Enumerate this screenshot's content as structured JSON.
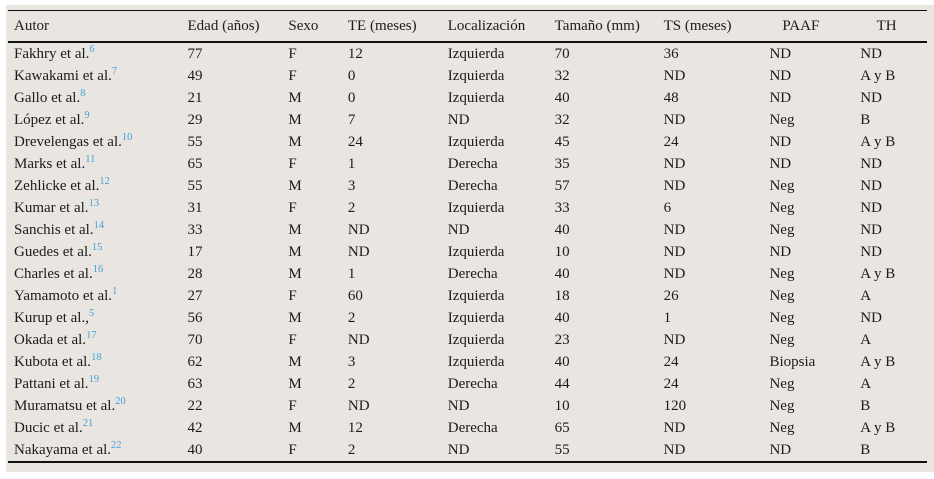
{
  "colors": {
    "table_background": "#e9e6e1",
    "rule_color": "#111111",
    "text_color": "#1c1c1c",
    "reference_blue": "#45a1d8"
  },
  "table": {
    "columns": [
      {
        "key": "autor",
        "label": "Autor"
      },
      {
        "key": "edad",
        "label": "Edad (años)"
      },
      {
        "key": "sexo",
        "label": "Sexo"
      },
      {
        "key": "te",
        "label": "TE (meses)"
      },
      {
        "key": "localizacion",
        "label": "Localización"
      },
      {
        "key": "tamano",
        "label": "Tamaño (mm)"
      },
      {
        "key": "ts",
        "label": "TS (meses)"
      },
      {
        "key": "paaf",
        "label": "PAAF"
      },
      {
        "key": "th",
        "label": "TH"
      }
    ],
    "rows": [
      {
        "author": "Fakhry et al.",
        "ref": "6",
        "cells": [
          "77",
          "F",
          "12",
          "Izquierda",
          "70",
          "36",
          "ND",
          "ND"
        ]
      },
      {
        "author": "Kawakami et al.",
        "ref": "7",
        "cells": [
          "49",
          "F",
          "0",
          "Izquierda",
          "32",
          "ND",
          "ND",
          "A y B"
        ]
      },
      {
        "author": "Gallo et al.",
        "ref": "8",
        "cells": [
          "21",
          "M",
          "0",
          "Izquierda",
          "40",
          "48",
          "ND",
          "ND"
        ]
      },
      {
        "author": "López et al.",
        "ref": "9",
        "cells": [
          "29",
          "M",
          "7",
          "ND",
          "32",
          "ND",
          "Neg",
          "B"
        ]
      },
      {
        "author": "Drevelengas et al.",
        "ref": "10",
        "cells": [
          "55",
          "M",
          "24",
          "Izquierda",
          "45",
          "24",
          "ND",
          "A y B"
        ]
      },
      {
        "author": "Marks et al.",
        "ref": "11",
        "cells": [
          "65",
          "F",
          "1",
          "Derecha",
          "35",
          "ND",
          "ND",
          "ND"
        ]
      },
      {
        "author": "Zehlicke et al.",
        "ref": "12",
        "cells": [
          "55",
          "M",
          "3",
          "Derecha",
          "57",
          "ND",
          "Neg",
          "ND"
        ]
      },
      {
        "author": "Kumar et al.",
        "ref": "13",
        "cells": [
          "31",
          "F",
          "2",
          "Izquierda",
          "33",
          "6",
          "Neg",
          "ND"
        ]
      },
      {
        "author": "Sanchis et al.",
        "ref": "14",
        "cells": [
          "33",
          "M",
          "ND",
          "ND",
          "40",
          "ND",
          "Neg",
          "ND"
        ]
      },
      {
        "author": "Guedes et al.",
        "ref": "15",
        "cells": [
          "17",
          "M",
          "ND",
          "Izquierda",
          "10",
          "ND",
          "ND",
          "ND"
        ]
      },
      {
        "author": "Charles et al.",
        "ref": "16",
        "cells": [
          "28",
          "M",
          "1",
          "Derecha",
          "40",
          "ND",
          "Neg",
          "A y B"
        ]
      },
      {
        "author": "Yamamoto et al.",
        "ref": "1",
        "cells": [
          "27",
          "F",
          "60",
          "Izquierda",
          "18",
          "26",
          "Neg",
          "A"
        ]
      },
      {
        "author": "Kurup et al.,",
        "ref": "5",
        "cells": [
          "56",
          "M",
          "2",
          "Izquierda",
          "40",
          "1",
          "Neg",
          "ND"
        ]
      },
      {
        "author": "Okada et al.",
        "ref": "17",
        "cells": [
          "70",
          "F",
          "ND",
          "Izquierda",
          "23",
          "ND",
          "Neg",
          "A"
        ]
      },
      {
        "author": "Kubota et al.",
        "ref": "18",
        "cells": [
          "62",
          "M",
          "3",
          "Izquierda",
          "40",
          "24",
          "Biopsia",
          "A y B"
        ]
      },
      {
        "author": "Pattani et al.",
        "ref": "19",
        "cells": [
          "63",
          "M",
          "2",
          "Derecha",
          "44",
          "24",
          "Neg",
          "A"
        ]
      },
      {
        "author": "Muramatsu et al.",
        "ref": "20",
        "cells": [
          "22",
          "F",
          "ND",
          "ND",
          "10",
          "120",
          "Neg",
          "B"
        ]
      },
      {
        "author": "Ducic et al.",
        "ref": "21",
        "cells": [
          "42",
          "M",
          "12",
          "Derecha",
          "65",
          "ND",
          "Neg",
          "A y B"
        ]
      },
      {
        "author": "Nakayama et al.",
        "ref": "22",
        "cells": [
          "40",
          "F",
          "2",
          "ND",
          "55",
          "ND",
          "ND",
          "B"
        ]
      }
    ]
  }
}
